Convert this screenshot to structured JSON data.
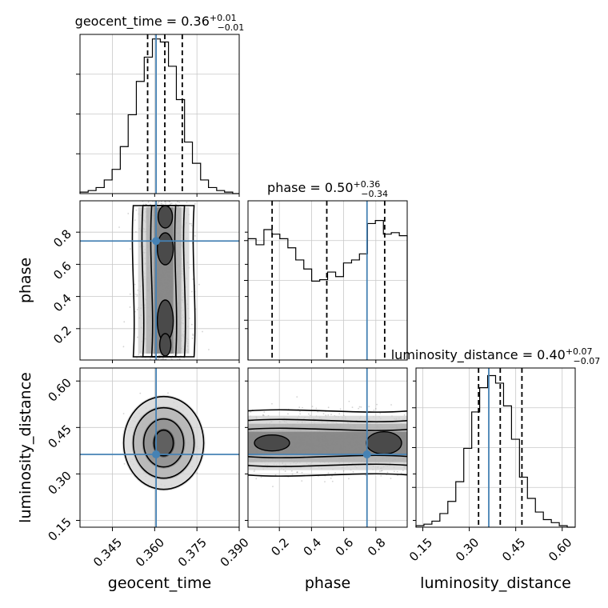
{
  "chart_data": {
    "type": "corner",
    "colors": {
      "truth": "#4682b4",
      "hist": "#000000",
      "grid": "#c8c8c8",
      "scatter": "#808080"
    },
    "parameters": [
      "geocent_time",
      "phase",
      "luminosity_distance"
    ],
    "truths": {
      "geocent_time": 0.3605,
      "phase": 0.745,
      "luminosity_distance": 0.363
    },
    "titles": [
      {
        "param": "geocent_time",
        "label": "geocent_time = 0.36",
        "plus": "+0.01",
        "minus": "−0.01"
      },
      {
        "param": "phase",
        "label": "phase = 0.50",
        "plus": "+0.36",
        "minus": "−0.34"
      },
      {
        "param": "luminosity_distance",
        "label": "luminosity_distance = 0.40",
        "plus": "+0.07",
        "minus": "−0.07"
      }
    ],
    "axes": {
      "geocent_time": {
        "range": [
          0.3335,
          0.39
        ],
        "ticks": [
          0.345,
          0.36,
          0.375,
          0.39
        ],
        "tick_labels": [
          "0.345",
          "0.360",
          "0.375",
          "0.390"
        ],
        "label": "geocent_time"
      },
      "phase": {
        "range": [
          0.005,
          0.995
        ],
        "ticks": [
          0.2,
          0.4,
          0.6,
          0.8
        ],
        "tick_labels": [
          "0.2",
          "0.4",
          "0.6",
          "0.8"
        ],
        "label": "phase"
      },
      "luminosity_distance": {
        "range": [
          0.128,
          0.642
        ],
        "ticks": [
          0.15,
          0.3,
          0.45,
          0.6
        ],
        "tick_labels": [
          "0.15",
          "0.30",
          "0.45",
          "0.60"
        ],
        "label": "luminosity_distance"
      }
    },
    "marginals": {
      "geocent_time": {
        "edges": [
          0.3335,
          0.3364,
          0.3392,
          0.3421,
          0.3449,
          0.3478,
          0.3506,
          0.3535,
          0.3563,
          0.3592,
          0.362,
          0.3649,
          0.3677,
          0.3706,
          0.3734,
          0.3763,
          0.3791,
          0.382,
          0.3848,
          0.3877,
          0.39
        ],
        "counts": [
          1,
          2,
          4,
          9,
          16,
          31,
          52,
          74,
          90,
          102,
          100,
          84,
          62,
          34,
          20,
          9,
          4,
          2,
          1,
          0
        ],
        "quantiles": [
          0.3575,
          0.3636,
          0.3698
        ],
        "ymax": 105
      },
      "phase": {
        "edges": [
          0.005,
          0.055,
          0.104,
          0.154,
          0.203,
          0.253,
          0.302,
          0.352,
          0.401,
          0.451,
          0.5,
          0.55,
          0.599,
          0.649,
          0.698,
          0.748,
          0.797,
          0.847,
          0.896,
          0.946,
          0.995
        ],
        "counts": [
          80,
          76,
          86,
          83,
          80,
          74,
          66,
          60,
          52,
          53,
          58,
          55,
          64,
          66,
          70,
          90,
          92,
          83,
          84,
          82
        ],
        "quantiles": [
          0.155,
          0.495,
          0.855
        ],
        "ymax": 105
      },
      "luminosity_distance": {
        "edges": [
          0.128,
          0.1537,
          0.1794,
          0.2051,
          0.2308,
          0.2565,
          0.2822,
          0.3079,
          0.3336,
          0.3593,
          0.385,
          0.4107,
          0.4364,
          0.4621,
          0.4878,
          0.5135,
          0.5392,
          0.5649,
          0.5906,
          0.6163,
          0.642
        ],
        "counts": [
          1,
          2,
          4,
          9,
          17,
          30,
          52,
          76,
          92,
          100,
          95,
          80,
          58,
          33,
          19,
          10,
          5,
          3,
          1,
          0
        ],
        "quantiles": [
          0.33,
          0.4,
          0.47
        ],
        "ymax": 105
      }
    }
  }
}
